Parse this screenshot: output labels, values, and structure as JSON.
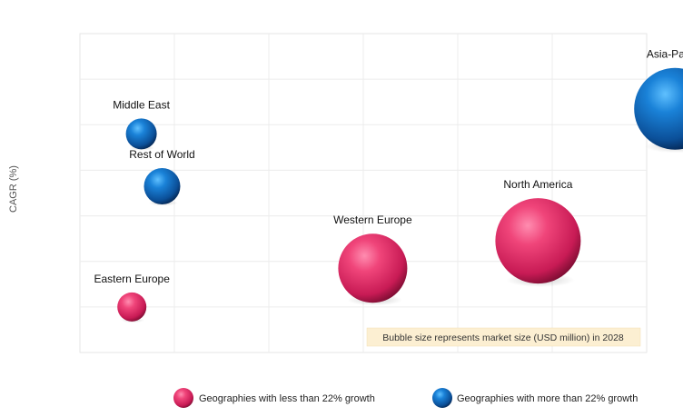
{
  "chart_data": {
    "type": "bubble",
    "title": "",
    "xlabel": "",
    "ylabel": "CAGR (%)",
    "grid": true,
    "note": "Bubble size represents market size (USD million) in 2028",
    "legend_placement": "bottom",
    "series": [
      {
        "name": "Geographies with less than 22% growth",
        "color": "#e8306b"
      },
      {
        "name": "Geographies with more than 22% growth",
        "color": "#0a62b4"
      }
    ],
    "points": [
      {
        "label": "Asia-Pacific",
        "series": 1,
        "x": 6.3,
        "y": 5.35,
        "size": 45
      },
      {
        "label": "Middle East",
        "series": 1,
        "x": 0.65,
        "y": 4.8,
        "size": 17
      },
      {
        "label": "Rest of World",
        "series": 1,
        "x": 0.87,
        "y": 3.65,
        "size": 20
      },
      {
        "label": "Western Europe",
        "series": 0,
        "x": 3.1,
        "y": 1.85,
        "size": 38
      },
      {
        "label": "North America",
        "series": 0,
        "x": 4.85,
        "y": 2.45,
        "size": 47
      },
      {
        "label": "Eastern Europe",
        "series": 0,
        "x": 0.55,
        "y": 1.0,
        "size": 16
      }
    ],
    "xlim": [
      0,
      6.0
    ],
    "ylim": [
      0,
      7.0
    ]
  }
}
